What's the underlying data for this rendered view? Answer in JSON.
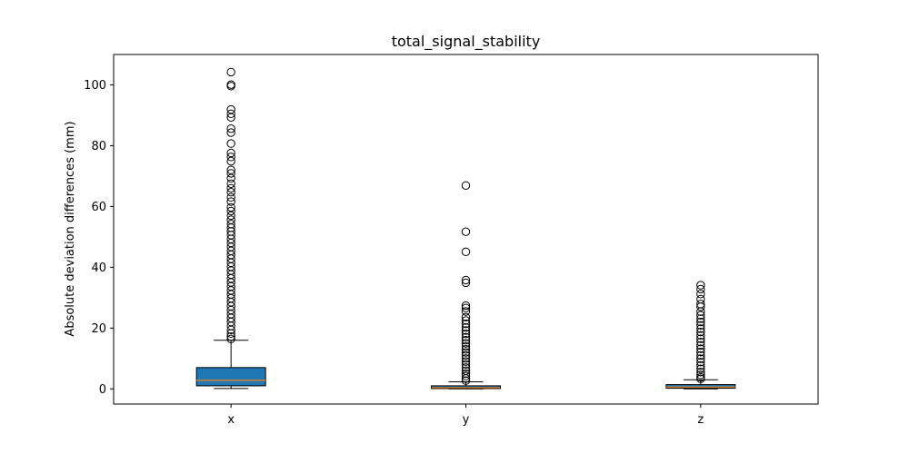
{
  "chart_data": {
    "type": "box",
    "title": "total_signal_stability",
    "xlabel": "",
    "ylabel": "Absolute deviation differences (mm)",
    "ylim": [
      -5,
      110
    ],
    "yticks": [
      0,
      20,
      40,
      60,
      80,
      100
    ],
    "grid": false,
    "colors": {
      "box_fill": "#1f77b4",
      "median": "#ff7f0e",
      "edge": "#000000"
    },
    "categories": [
      "x",
      "y",
      "z"
    ],
    "boxes": [
      {
        "label": "x",
        "whisker_low": 0.1,
        "q1": 1.0,
        "median": 2.8,
        "q3": 7.0,
        "whisker_high": 16.0,
        "outliers": [
          104.2,
          100.1,
          99.6,
          91.9,
          90.5,
          89.3,
          85.6,
          84.3,
          80.7,
          77.6,
          76.3,
          74.9,
          72.0,
          70.9,
          69.3,
          67.5,
          66.0,
          64.7,
          63.0,
          61.6,
          59.7,
          58.5,
          57.0,
          55.6,
          54.2,
          53.0,
          51.8,
          50.6,
          49.3,
          48.0,
          46.7,
          45.4,
          44.1,
          42.8,
          41.5,
          40.2,
          38.9,
          37.6,
          36.3,
          35.0,
          33.7,
          32.4,
          31.1,
          29.8,
          28.5,
          27.2,
          25.9,
          24.6,
          23.3,
          22.0,
          20.7,
          19.4,
          18.2,
          17.2,
          16.4
        ]
      },
      {
        "label": "y",
        "whisker_low": 0.0,
        "q1": 0.1,
        "median": 0.4,
        "q3": 1.0,
        "whisker_high": 2.3,
        "outliers": [
          66.9,
          51.7,
          45.1,
          35.8,
          34.9,
          27.4,
          26.6,
          25.5,
          23.6,
          22.5,
          21.4,
          20.2,
          19.2,
          18.1,
          17.0,
          16.0,
          15.0,
          14.0,
          13.0,
          12.0,
          11.0,
          10.0,
          9.0,
          8.0,
          7.0,
          6.0,
          5.0,
          4.2,
          3.4,
          2.7
        ]
      },
      {
        "label": "z",
        "whisker_low": 0.0,
        "q1": 0.2,
        "median": 0.6,
        "q3": 1.4,
        "whisker_high": 3.0,
        "outliers": [
          34.1,
          32.8,
          31.2,
          29.5,
          27.9,
          27.0,
          25.4,
          24.2,
          23.1,
          22.0,
          20.9,
          19.8,
          18.7,
          17.6,
          16.5,
          15.4,
          14.3,
          13.2,
          12.1,
          11.0,
          9.9,
          8.8,
          7.7,
          6.6,
          5.5,
          4.6,
          3.8,
          3.3
        ]
      }
    ]
  }
}
